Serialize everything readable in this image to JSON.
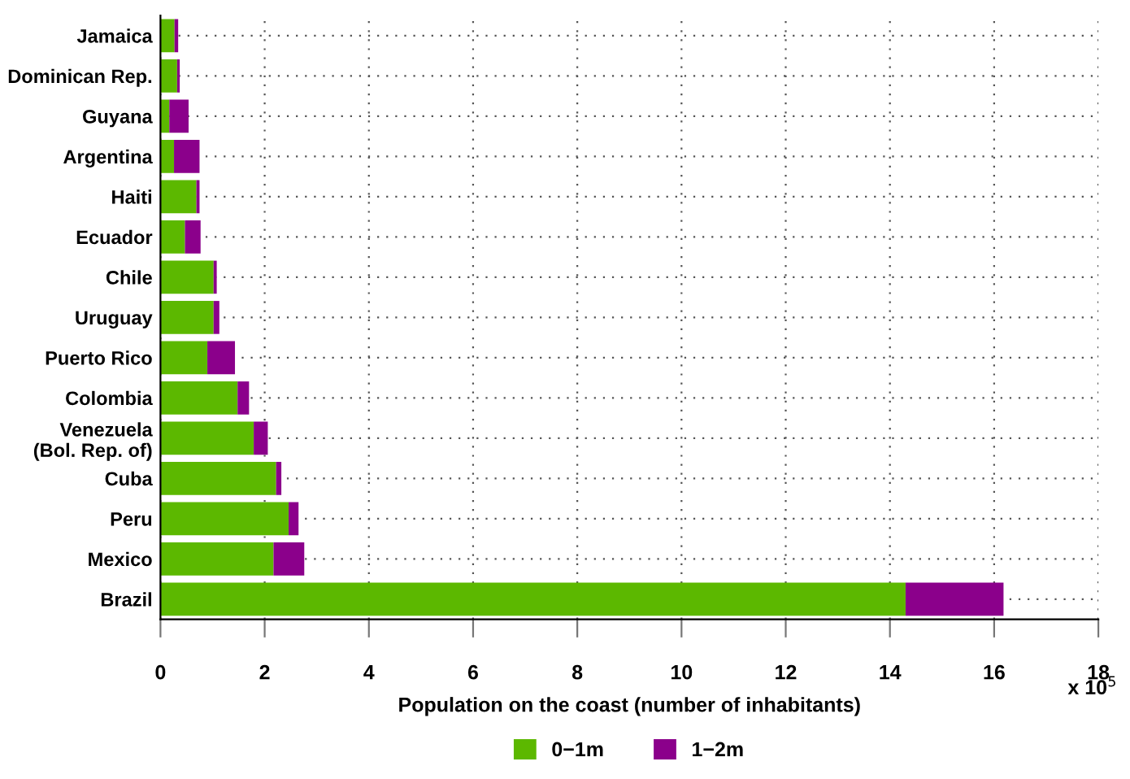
{
  "chart_data": {
    "type": "bar",
    "orientation": "horizontal",
    "stacked": true,
    "xlabel": "Population on the coast (number of inhabitants)",
    "categories": [
      "Jamaica",
      "Dominican Rep.",
      "Guyana",
      "Argentina",
      "Haiti",
      "Ecuador",
      "Chile",
      "Uruguay",
      "Puerto Rico",
      "Colombia",
      "Venezuela\n(Bol. Rep. of)",
      "Cuba",
      "Peru",
      "Mexico",
      "Brazil"
    ],
    "series": [
      {
        "name": "0−1m",
        "color": "#5cb800",
        "values": [
          0.27,
          0.32,
          0.17,
          0.26,
          0.69,
          0.47,
          1.02,
          1.02,
          0.9,
          1.48,
          1.79,
          2.22,
          2.46,
          2.17,
          14.3
        ]
      },
      {
        "name": "1−2m",
        "color": "#8b008b",
        "values": [
          0.07,
          0.05,
          0.37,
          0.49,
          0.06,
          0.3,
          0.06,
          0.11,
          0.53,
          0.22,
          0.27,
          0.1,
          0.19,
          0.59,
          1.88
        ]
      }
    ],
    "xlim": [
      0,
      18
    ],
    "xticks": [
      0,
      2,
      4,
      6,
      8,
      10,
      12,
      14,
      16,
      18
    ],
    "annotations": [
      "x 10$^{5}$"
    ],
    "grid": true,
    "legend": "bottom"
  }
}
